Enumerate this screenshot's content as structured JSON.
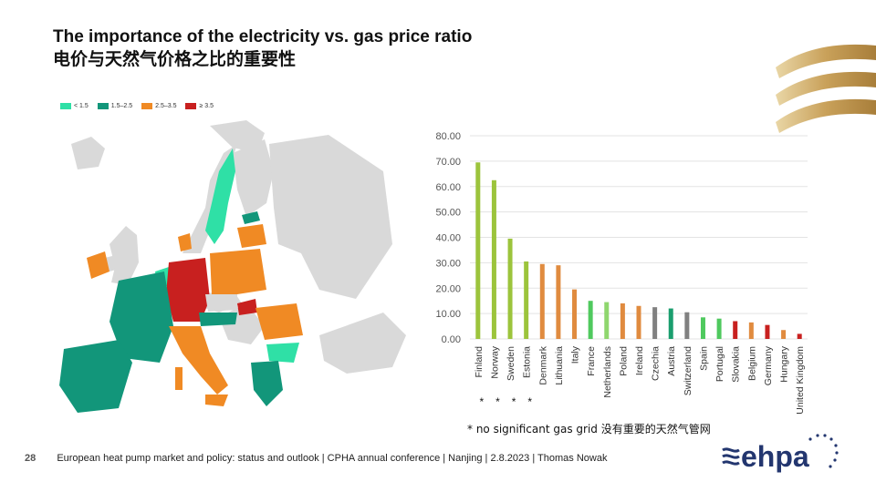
{
  "title_en": "The importance  of the electricity vs. gas price ratio",
  "title_cn": "电价与天然气价格之比的重要性",
  "legend": [
    {
      "label": "< 1.5",
      "color": "#2fe0a6"
    },
    {
      "label": "1.5–2.5",
      "color": "#12967a"
    },
    {
      "label": "2.5–3.5",
      "color": "#f08a24"
    },
    {
      "label": "≥ 3.5",
      "color": "#c8201f"
    }
  ],
  "chart_data": {
    "type": "bar",
    "categories": [
      "Finland",
      "Norway",
      "Sweden",
      "Estonia",
      "Denmark",
      "Lithuania",
      "Italy",
      "France",
      "Netherlands",
      "Poland",
      "Ireland",
      "Czechia",
      "Austria",
      "Switzerland",
      "Spain",
      "Portugal",
      "Slovakia",
      "Belgium",
      "Germany",
      "Hungary",
      "United Kingdom"
    ],
    "values": [
      69.5,
      62.5,
      39.5,
      30.5,
      29.5,
      29.0,
      19.5,
      15.0,
      14.5,
      14.0,
      13.0,
      12.5,
      12.0,
      10.5,
      8.5,
      8.0,
      7.0,
      6.5,
      5.5,
      3.5,
      2.0
    ],
    "colors": [
      "#9cc43c",
      "#9cc43c",
      "#9cc43c",
      "#9cc43c",
      "#e08b3f",
      "#e08b3f",
      "#e08b3f",
      "#4fc95e",
      "#8fd66e",
      "#e08b3f",
      "#e08b3f",
      "#808080",
      "#1a9e6e",
      "#808080",
      "#4fc95e",
      "#4fc95e",
      "#c8201f",
      "#e08b3f",
      "#c8201f",
      "#e08b3f",
      "#c8201f"
    ],
    "y_ticks": [
      "0.00",
      "10.00",
      "20.00",
      "30.00",
      "40.00",
      "50.00",
      "60.00",
      "70.00",
      "80.00"
    ],
    "ylim": [
      0,
      80
    ],
    "asterisk_marks": [
      "*",
      "*",
      "*",
      "*"
    ],
    "title": "",
    "xlabel": "",
    "ylabel": ""
  },
  "footnote": "* no significant gas grid  没有重要的天然气管网",
  "footer": {
    "page": "28",
    "text": "European heat pump market and policy: status and outlook  | CPHA annual conference | Nanjing | 2.8.2023 | Thomas Nowak"
  },
  "logo_text": "ehpa",
  "colors": {
    "gold": "#c9a15a",
    "logo_navy": "#23366f"
  }
}
